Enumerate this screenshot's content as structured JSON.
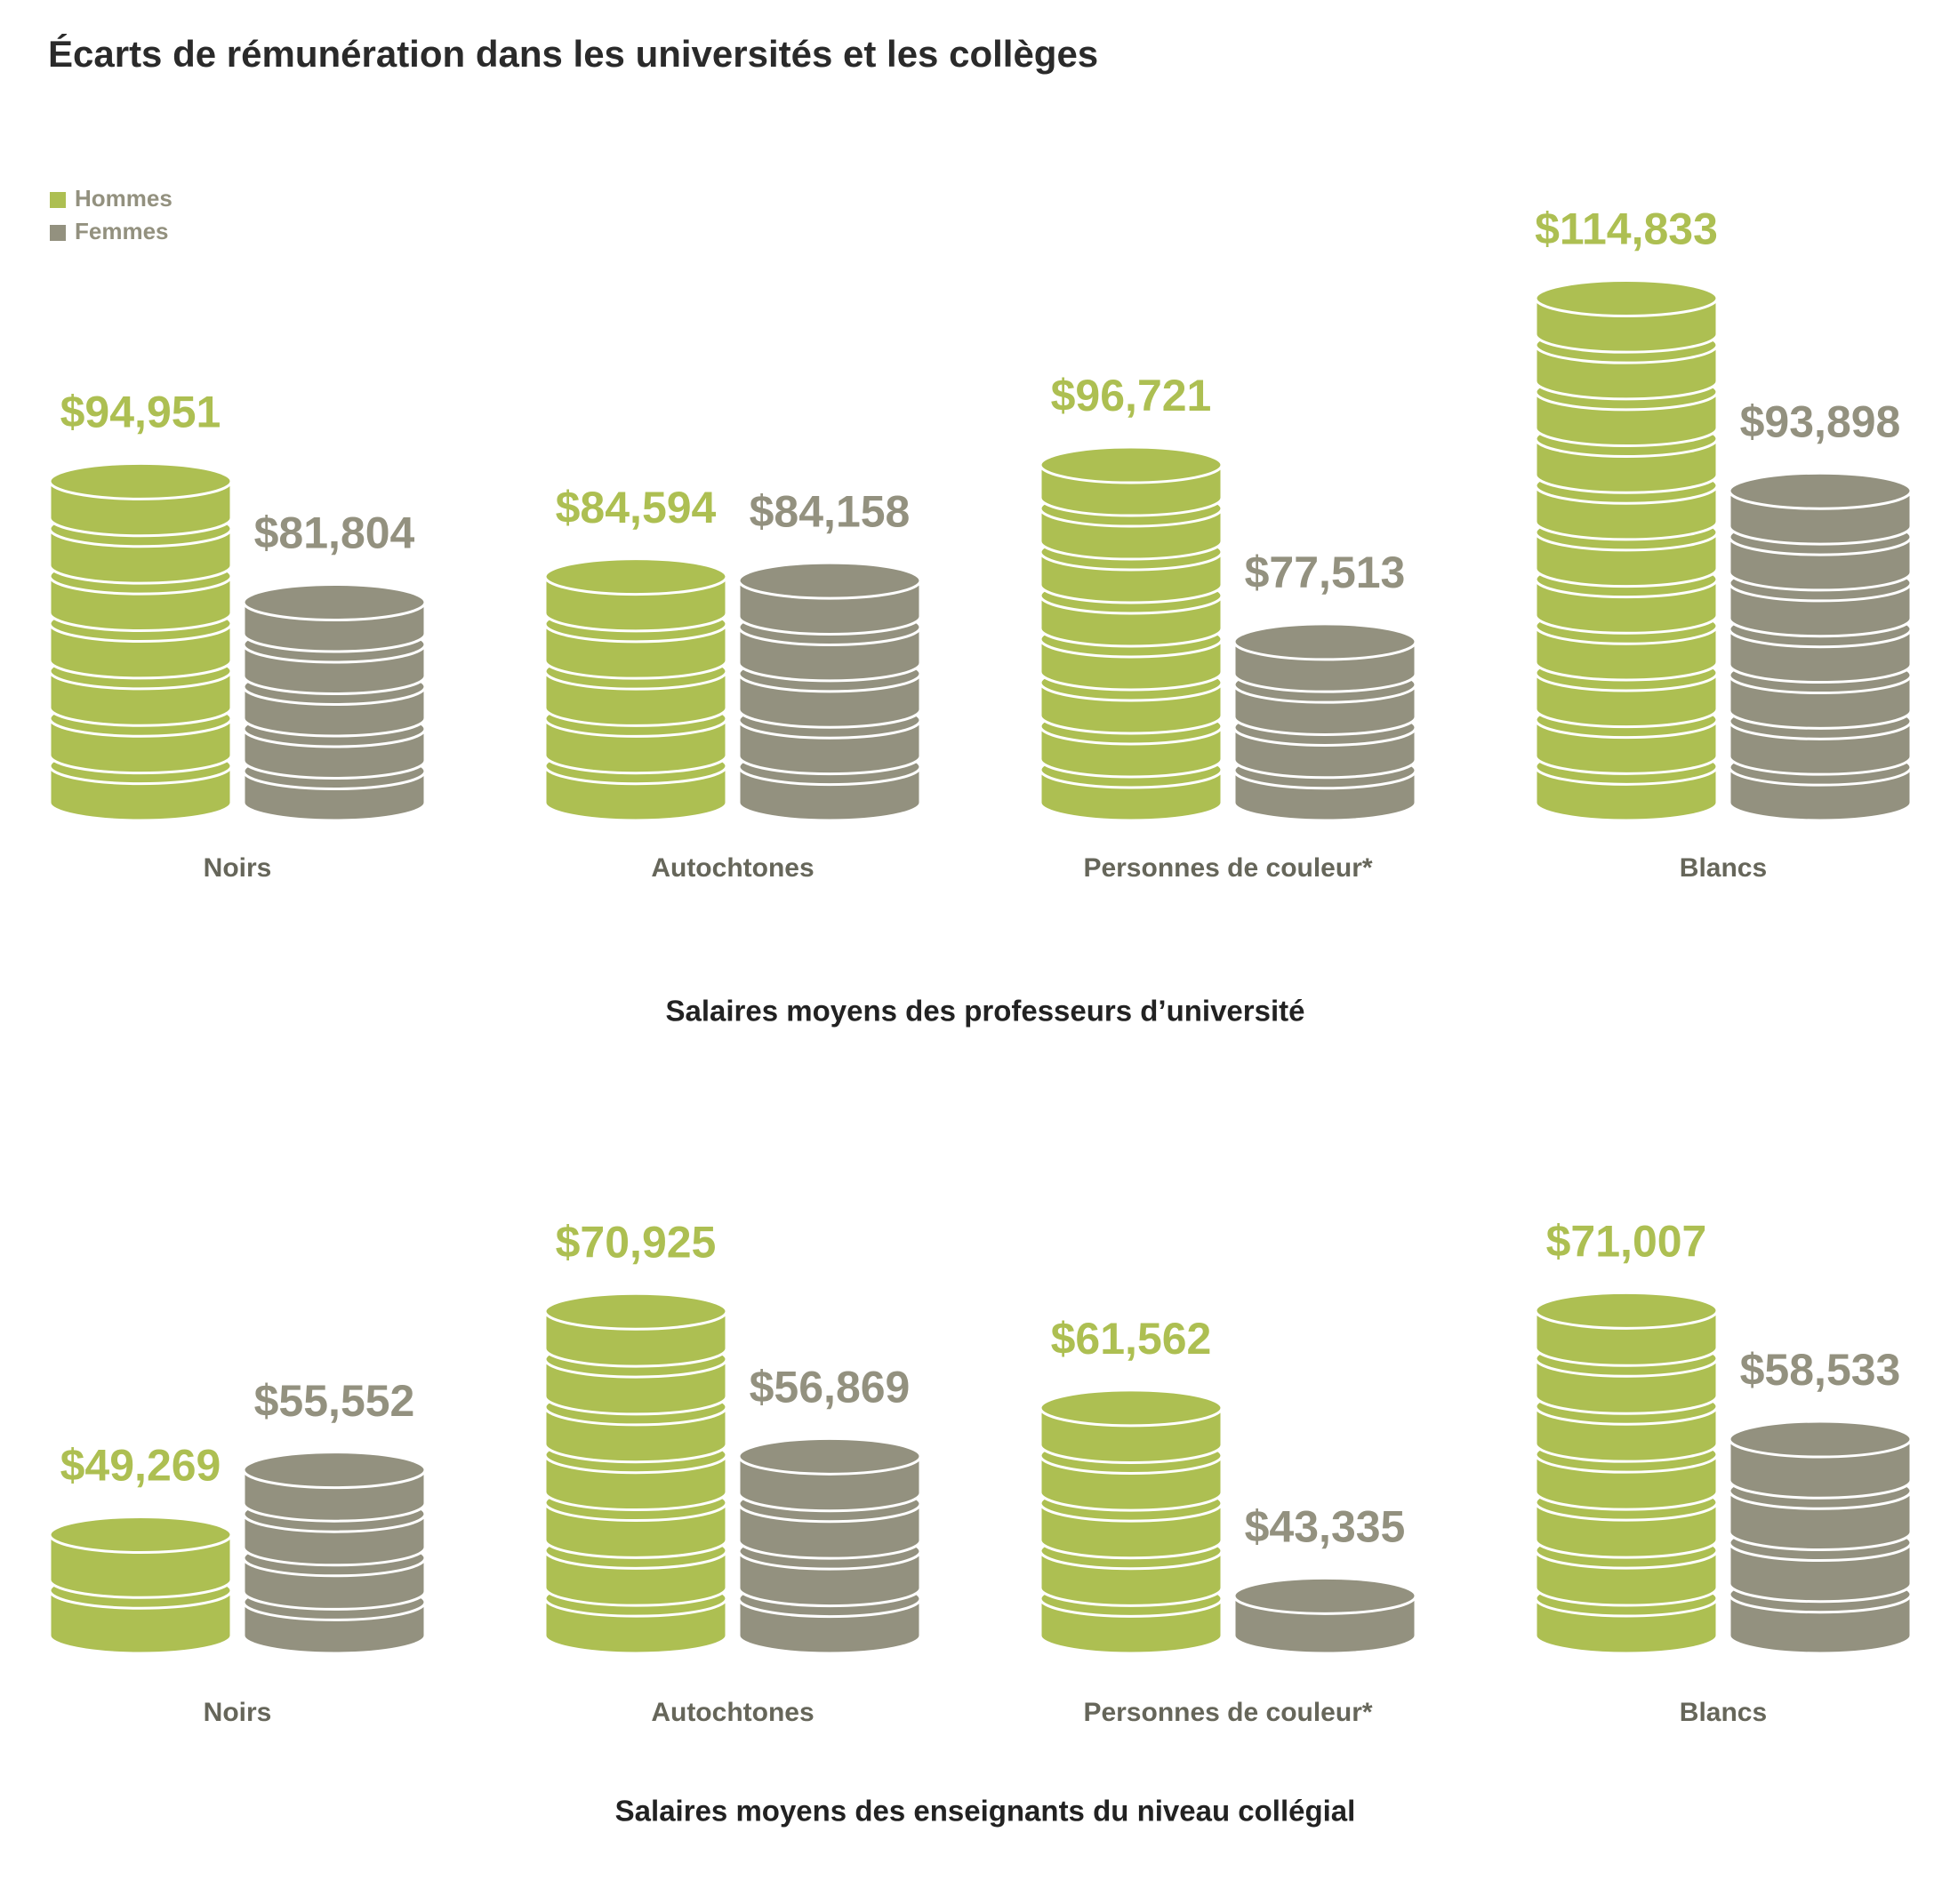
{
  "title": "Écarts de rémunération dans les universités et les collèges",
  "chart_data": [
    {
      "type": "coin-bar",
      "title": "Salaires moyens des professeurs d’université",
      "categories": [
        "Noirs",
        "Autochtones",
        "Personnes de couleur*",
        "Blancs"
      ],
      "series": [
        {
          "name": "Hommes",
          "color": "#adbf52",
          "values": [
            94951,
            84594,
            96721,
            114833
          ],
          "value_labels": [
            "$94,951",
            "$84,594",
            "$96,721",
            "$114,833"
          ]
        },
        {
          "name": "Femmes",
          "color": "#93917f",
          "values": [
            81804,
            84158,
            77513,
            93898
          ],
          "value_labels": [
            "$81,804",
            "$84,158",
            "$77,513",
            "$93,898"
          ]
        }
      ],
      "ylim": [
        55000,
        120000
      ]
    },
    {
      "type": "coin-bar",
      "title": "Salaires moyens des enseignants du niveau collégial",
      "categories": [
        "Noirs",
        "Autochtones",
        "Personnes de couleur*",
        "Blancs"
      ],
      "series": [
        {
          "color": "#adbf52",
          "values": [
            49269,
            70925,
            61562,
            71007
          ],
          "value_labels": [
            "$49,269",
            "$70,925",
            "$61,562",
            "$71,007"
          ]
        },
        {
          "color": "#93917f",
          "values": [
            55552,
            56869,
            43335,
            58533
          ],
          "value_labels": [
            "$55,552",
            "$56,869",
            "$43,335",
            "$58,533"
          ]
        }
      ],
      "ylim": [
        35000,
        75000
      ]
    }
  ]
}
